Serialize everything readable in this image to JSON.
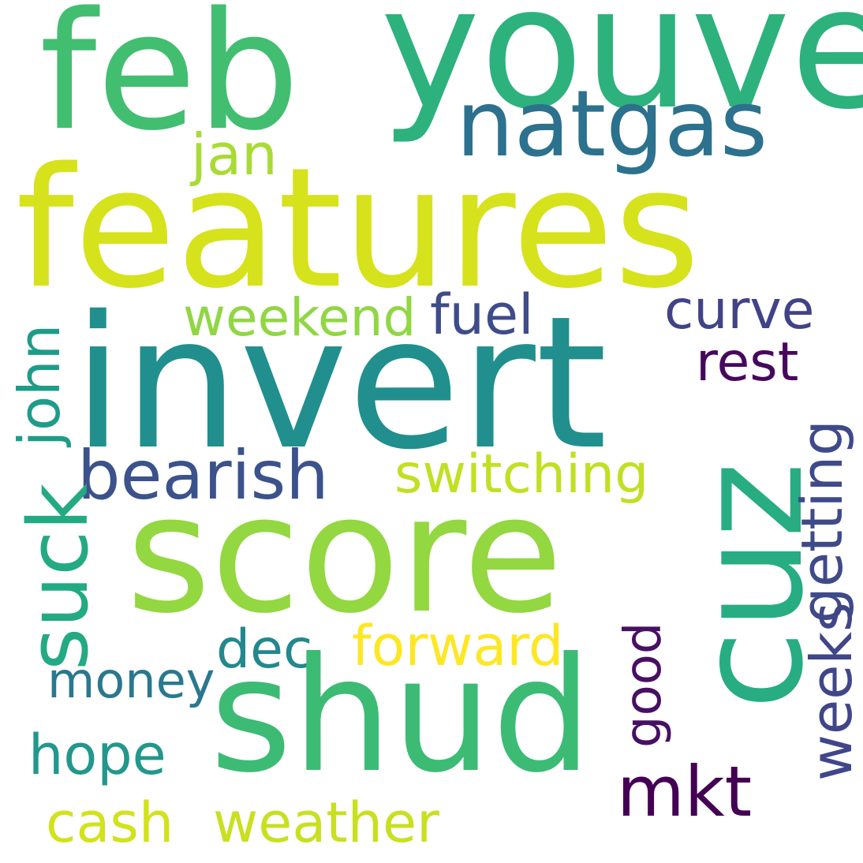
{
  "words": {
    "features": {
      "text": "features",
      "color": "#d6e21b"
    },
    "invert": {
      "text": "invert",
      "color": "#218f8d"
    },
    "score": {
      "text": "score",
      "color": "#93d741"
    },
    "shud": {
      "text": "shud",
      "color": "#3cbb75"
    },
    "feb": {
      "text": "feb",
      "color": "#42be71"
    },
    "youve": {
      "text": "youve",
      "color": "#2db27d"
    },
    "cuz": {
      "text": "cuz",
      "color": "#27ad81"
    },
    "natgas": {
      "text": "natgas",
      "color": "#2c718e"
    },
    "suck": {
      "text": "suck",
      "color": "#24aa83"
    },
    "bearish": {
      "text": "bearish",
      "color": "#3b528b"
    },
    "switching": {
      "text": "switching",
      "color": "#c2df23"
    },
    "mkt": {
      "text": "mkt",
      "color": "#440154"
    },
    "forward": {
      "text": "forward",
      "color": "#fde725"
    },
    "weather": {
      "text": "weather",
      "color": "#c8e020"
    },
    "jan": {
      "text": "jan",
      "color": "#a8db34"
    },
    "weekend": {
      "text": "weekend",
      "color": "#90d743"
    },
    "fuel": {
      "text": "fuel",
      "color": "#3e4c8a"
    },
    "curve": {
      "text": "curve",
      "color": "#404387"
    },
    "rest": {
      "text": "rest",
      "color": "#46085c"
    },
    "john": {
      "text": "john",
      "color": "#1e9c89"
    },
    "getting": {
      "text": "getting",
      "color": "#3e4a89"
    },
    "weeks": {
      "text": "weeks",
      "color": "#404688"
    },
    "dec": {
      "text": "dec",
      "color": "#23888e"
    },
    "money": {
      "text": "money",
      "color": "#2a788e"
    },
    "good": {
      "text": "good",
      "color": "#471063"
    },
    "hope": {
      "text": "hope",
      "color": "#22978c"
    },
    "cash": {
      "text": "cash",
      "color": "#d2e21b"
    }
  }
}
